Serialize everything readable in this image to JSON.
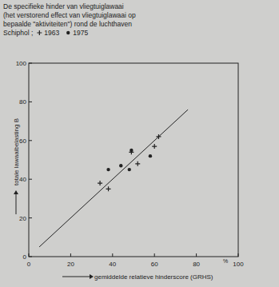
{
  "chart_data": {
    "type": "scatter",
    "title": "De specifieke hinder van vliegtuiglawaai\n(het verstorend effect van vliegtuiglawaai op\nbepaalde \"aktiviteiten\") rond de luchthaven\nSchiphol ;",
    "x_label": "gemiddelde relatieve hinderscore (GRHS)",
    "y_label": "totale lawaaibelasting B",
    "x_unit": "%",
    "xlim": [
      0,
      100
    ],
    "xticks": [
      0,
      20,
      40,
      60,
      80,
      100
    ],
    "ylim": [
      0,
      100
    ],
    "yticks": [
      0,
      20,
      40,
      60,
      80,
      100
    ],
    "grid": false,
    "series": [
      {
        "name": "1963",
        "type": "scatter",
        "marker": "plus",
        "color": "#222222",
        "x": [
          34,
          38,
          49,
          52,
          60,
          62
        ],
        "values": [
          38,
          35,
          54,
          48,
          57,
          62
        ]
      },
      {
        "name": "1975",
        "type": "scatter",
        "marker": "dot",
        "color": "#222222",
        "x": [
          38,
          44,
          48,
          49,
          58
        ],
        "values": [
          45,
          47,
          45,
          55,
          52
        ]
      },
      {
        "type": "line",
        "line_style": "solid",
        "color": "#222222",
        "x": [
          5,
          76
        ],
        "values": [
          5,
          76
        ]
      }
    ]
  }
}
